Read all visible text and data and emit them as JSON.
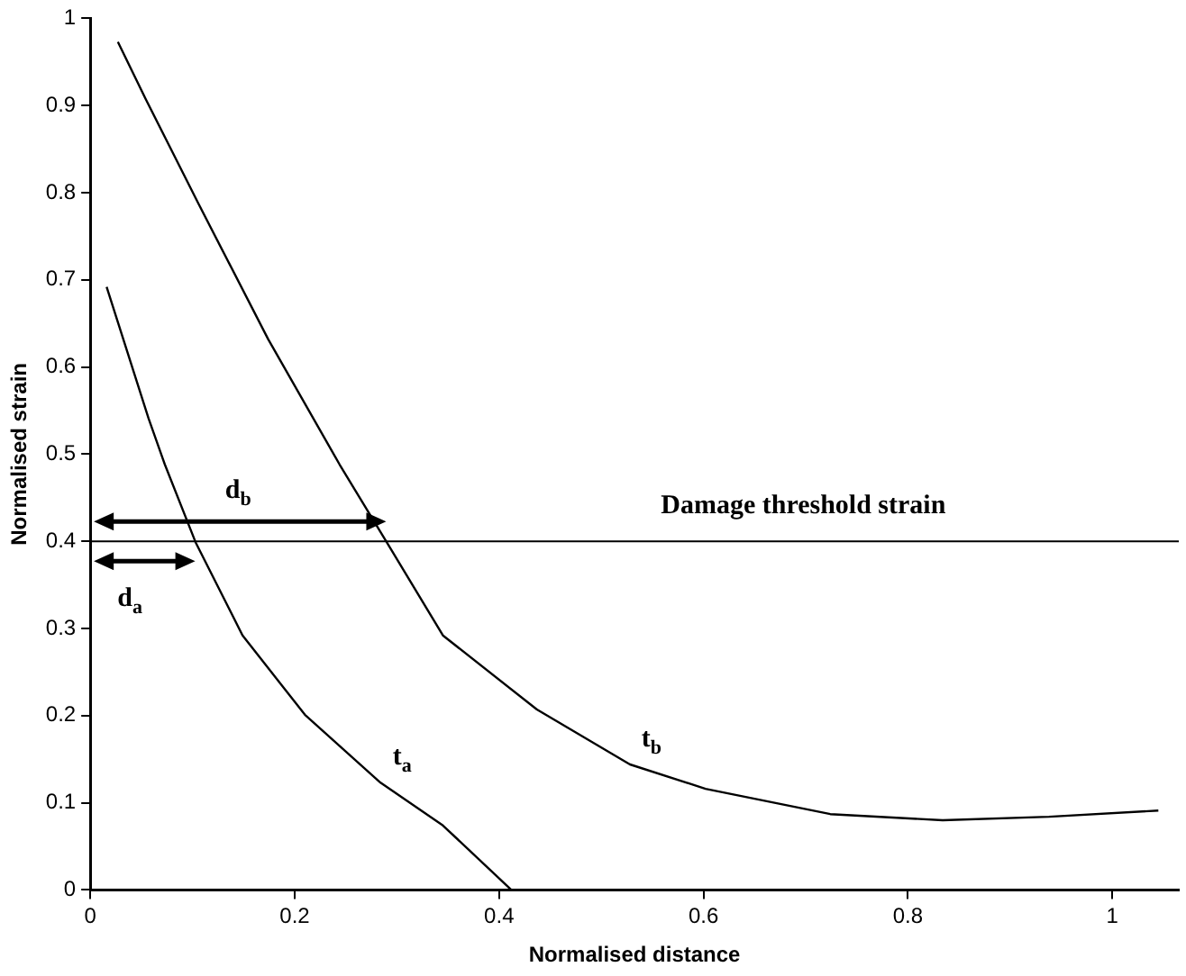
{
  "chart_data": {
    "type": "line",
    "xlabel": "Normalised distance",
    "ylabel": "Normalised strain",
    "xlim": [
      0,
      1.065
    ],
    "xticks": [
      0,
      0.2,
      0.4,
      0.6,
      0.8,
      1
    ],
    "ylim": [
      0,
      1
    ],
    "yticks": [
      0,
      0.1,
      0.2,
      0.3,
      0.4,
      0.5,
      0.6,
      0.7,
      0.8,
      0.9,
      1
    ],
    "grid": false,
    "legend": false,
    "marker": "none",
    "line_style": "solid",
    "series": [
      {
        "name": "t$_{b}$",
        "color": "#000000",
        "x": [
          0.027,
          0.054,
          0.106,
          0.174,
          0.244,
          0.29,
          0.345,
          0.437,
          0.528,
          0.602,
          0.724,
          0.834,
          0.938,
          1.045
        ],
        "values": [
          0.973,
          0.908,
          0.787,
          0.632,
          0.488,
          0.399,
          0.292,
          0.207,
          0.144,
          0.116,
          0.087,
          0.08,
          0.084,
          0.091
        ]
      },
      {
        "name": "t$_{a}$",
        "color": "#000000",
        "x": [
          0.016,
          0.057,
          0.073,
          0.103,
          0.149,
          0.21,
          0.284,
          0.345,
          0.412
        ],
        "values": [
          0.692,
          0.541,
          0.488,
          0.399,
          0.292,
          0.201,
          0.123,
          0.074,
          0
        ]
      }
    ],
    "ref_lines": [
      {
        "axis": "y",
        "value": 0.4,
        "label": "Damage threshold strain",
        "color": "#000000"
      }
    ],
    "annotations": [
      "d$_{b}$",
      "d$_{a}$"
    ]
  }
}
